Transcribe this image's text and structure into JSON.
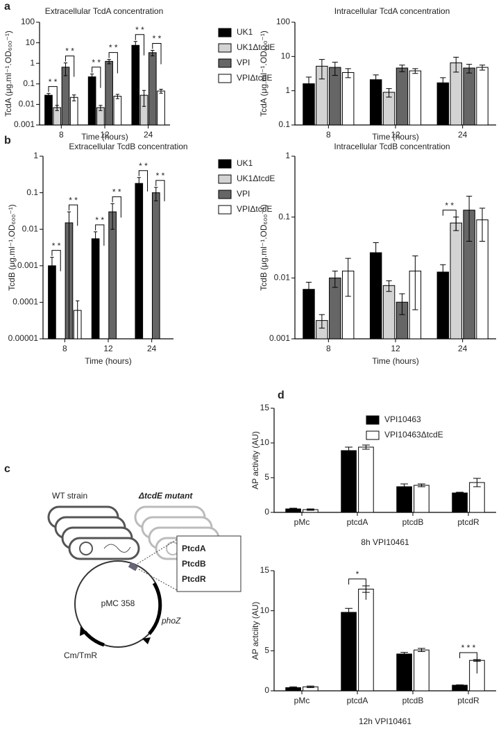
{
  "panel_labels": [
    "a",
    "b",
    "c",
    "d"
  ],
  "diagram": {
    "wt_label": "WT strain",
    "mutant_label": "ΔtcdE mutant",
    "plasmid": "pMC 358",
    "gene": "phoZ",
    "marker": "Cm/TmR",
    "promoters": [
      "PtcdA",
      "PtcdB",
      "PtcdR"
    ]
  },
  "chart_data": [
    {
      "type": "bar",
      "title": "Extracellular TcdA concentration",
      "x_label": "Time (hours)",
      "y_label": "TcdA (μg.ml⁻¹.OD₆₀₀⁻¹)",
      "categories": [
        "8",
        "12",
        "24"
      ],
      "log": true,
      "legend": true,
      "ylim": [
        0.001,
        100
      ],
      "yticks": [
        0.001,
        0.01,
        0.1,
        1,
        10,
        100
      ],
      "series": [
        {
          "name": "UK1",
          "color": "#000000",
          "values": [
            0.028,
            0.22,
            7.5
          ],
          "errors": [
            0.006,
            0.08,
            4
          ]
        },
        {
          "name": "UK1ΔtcdE",
          "color": "#d3d3d3",
          "values": [
            0.007,
            0.007,
            0.028
          ],
          "errors": [
            0.002,
            0.002,
            0.02
          ]
        },
        {
          "name": "VPI",
          "color": "#666666",
          "values": [
            0.65,
            1.25,
            3.3
          ],
          "errors": [
            0.4,
            0.3,
            1.0
          ]
        },
        {
          "name": "VPIΔtcdE",
          "color": "#ffffff",
          "values": [
            0.022,
            0.025,
            0.045
          ],
          "errors": [
            0.007,
            0.006,
            0.01
          ]
        }
      ],
      "annotations": [
        {
          "text": "* *",
          "category": "8",
          "from": "UK1",
          "to": "UK1ΔtcdE"
        },
        {
          "text": "* *",
          "category": "8",
          "from": "VPI",
          "to": "VPIΔtcdE"
        },
        {
          "text": "* *",
          "category": "12",
          "from": "UK1",
          "to": "UK1ΔtcdE"
        },
        {
          "text": "* *",
          "category": "12",
          "from": "VPI",
          "to": "VPIΔtcdE"
        },
        {
          "text": "* *",
          "category": "24",
          "from": "UK1",
          "to": "UK1ΔtcdE"
        },
        {
          "text": "* *",
          "category": "24",
          "from": "VPI",
          "to": "VPIΔtcdE"
        }
      ]
    },
    {
      "type": "bar",
      "title": "Intracellular TcdA concentration",
      "x_label": "Time (hours)",
      "y_label": "TcdA (μg.ml⁻¹.OD₆₀₀⁻¹)",
      "categories": [
        "8",
        "12",
        "24"
      ],
      "log": true,
      "legend": false,
      "ylim": [
        0.1,
        100
      ],
      "yticks": [
        0.1,
        1,
        10,
        100
      ],
      "series": [
        {
          "name": "UK1",
          "color": "#000000",
          "values": [
            1.6,
            2.1,
            1.7
          ],
          "errors": [
            0.9,
            0.8,
            0.7
          ]
        },
        {
          "name": "UK1ΔtcdE",
          "color": "#d3d3d3",
          "values": [
            5.2,
            0.9,
            6.5
          ],
          "errors": [
            3,
            0.25,
            3
          ]
        },
        {
          "name": "VPI",
          "color": "#666666",
          "values": [
            4.8,
            4.6,
            4.6
          ],
          "errors": [
            2,
            1,
            1.3
          ]
        },
        {
          "name": "VPIΔtcdE",
          "color": "#ffffff",
          "values": [
            3.4,
            3.8,
            4.8
          ],
          "errors": [
            1,
            0.6,
            0.8
          ]
        }
      ],
      "annotations": []
    },
    {
      "type": "bar",
      "title": "Extracellular TcdB concentration",
      "x_label": "Time (hours)",
      "y_label": "TcdB (μg.ml⁻¹.OD₆₀₀⁻¹)",
      "categories": [
        "8",
        "12",
        "24"
      ],
      "log": true,
      "legend": true,
      "ylim": [
        1e-05,
        1
      ],
      "yticks": [
        1e-05,
        0.0001,
        0.001,
        0.01,
        0.1,
        1
      ],
      "series": [
        {
          "name": "UK1",
          "color": "#000000",
          "values": [
            0.001,
            0.0055,
            0.18
          ],
          "errors": [
            0.0007,
            0.003,
            0.08
          ]
        },
        {
          "name": "UK1ΔtcdE",
          "color": "#d3d3d3",
          "values": [
            1e-05,
            1e-05,
            1e-05
          ],
          "errors": [
            0,
            0,
            0
          ]
        },
        {
          "name": "VPI",
          "color": "#666666",
          "values": [
            0.015,
            0.03,
            0.1
          ],
          "errors": [
            0.015,
            0.02,
            0.04
          ]
        },
        {
          "name": "VPIΔtcdE",
          "color": "#ffffff",
          "values": [
            6e-05,
            1e-05,
            1e-05
          ],
          "errors": [
            5e-05,
            0,
            0
          ]
        }
      ],
      "annotations": [
        {
          "text": "* *",
          "category": "8",
          "from": "UK1",
          "to": "UK1ΔtcdE"
        },
        {
          "text": "* *",
          "category": "8",
          "from": "VPI",
          "to": "VPIΔtcdE"
        },
        {
          "text": "* *",
          "category": "12",
          "from": "UK1",
          "to": "UK1ΔtcdE"
        },
        {
          "text": "* *",
          "category": "12",
          "from": "VPI",
          "to": "VPIΔtcdE"
        },
        {
          "text": "* *",
          "category": "24",
          "from": "UK1",
          "to": "UK1ΔtcdE"
        },
        {
          "text": "* *",
          "category": "24",
          "from": "VPI",
          "to": "VPIΔtcdE"
        }
      ]
    },
    {
      "type": "bar",
      "title": "Intracellular TcdB concentration",
      "x_label": "Time (hours)",
      "y_label": "TcdB (μg.ml⁻¹.OD₆₀₀⁻¹)",
      "categories": [
        "8",
        "12",
        "24"
      ],
      "log": true,
      "legend": false,
      "ylim": [
        0.001,
        1
      ],
      "yticks": [
        0.001,
        0.01,
        0.1,
        1
      ],
      "series": [
        {
          "name": "UK1",
          "color": "#000000",
          "values": [
            0.0065,
            0.026,
            0.0125
          ],
          "errors": [
            0.002,
            0.012,
            0.004
          ]
        },
        {
          "name": "UK1ΔtcdE",
          "color": "#d3d3d3",
          "values": [
            0.002,
            0.0075,
            0.08
          ],
          "errors": [
            0.0005,
            0.0015,
            0.02
          ]
        },
        {
          "name": "VPI",
          "color": "#666666",
          "values": [
            0.01,
            0.004,
            0.13
          ],
          "errors": [
            0.003,
            0.0015,
            0.09
          ]
        },
        {
          "name": "VPIΔtcdE",
          "color": "#ffffff",
          "values": [
            0.013,
            0.013,
            0.09
          ],
          "errors": [
            0.008,
            0.01,
            0.05
          ]
        }
      ],
      "annotations": [
        {
          "text": "* *",
          "category": "24",
          "from": "UK1",
          "to": "UK1ΔtcdE"
        }
      ]
    },
    {
      "type": "bar",
      "x_label": "8h VPI10461",
      "y_label": "AP activity (AU)",
      "categories": [
        "pMc",
        "ptcdA",
        "ptcdB",
        "ptcdR"
      ],
      "log": false,
      "legend": true,
      "ylim": [
        0,
        15
      ],
      "yticks": [
        0,
        5,
        10,
        15
      ],
      "series": [
        {
          "name": "VPI10463",
          "color": "#000000",
          "values": [
            0.5,
            8.9,
            3.7,
            2.8
          ],
          "errors": [
            0.1,
            0.5,
            0.4,
            0.1
          ]
        },
        {
          "name": "VPI10463ΔtcdE",
          "color": "#ffffff",
          "values": [
            0.4,
            9.4,
            3.9,
            4.3
          ],
          "errors": [
            0.1,
            0.3,
            0.2,
            0.6
          ]
        }
      ],
      "annotations": []
    },
    {
      "type": "bar",
      "x_label": "12h VPI10461",
      "y_label": "AP actciity (AU)",
      "categories": [
        "pMc",
        "ptcdA",
        "ptcdB",
        "ptcdR"
      ],
      "log": false,
      "legend": false,
      "ylim": [
        0,
        15
      ],
      "yticks": [
        0,
        5,
        10,
        15
      ],
      "series": [
        {
          "name": "VPI10463",
          "color": "#000000",
          "values": [
            0.4,
            9.8,
            4.6,
            0.7
          ],
          "errors": [
            0.1,
            0.5,
            0.2,
            0.05
          ]
        },
        {
          "name": "VPI10463ΔtcdE",
          "color": "#ffffff",
          "values": [
            0.5,
            12.7,
            5.1,
            3.8
          ],
          "errors": [
            0.1,
            0.4,
            0.2,
            0.1
          ]
        }
      ],
      "annotations": [
        {
          "text": "*",
          "category": "ptcdA",
          "from": "VPI10463",
          "to": "VPI10463ΔtcdE"
        },
        {
          "text": "* * *",
          "category": "ptcdR",
          "from": "VPI10463",
          "to": "VPI10463ΔtcdE"
        }
      ]
    }
  ]
}
